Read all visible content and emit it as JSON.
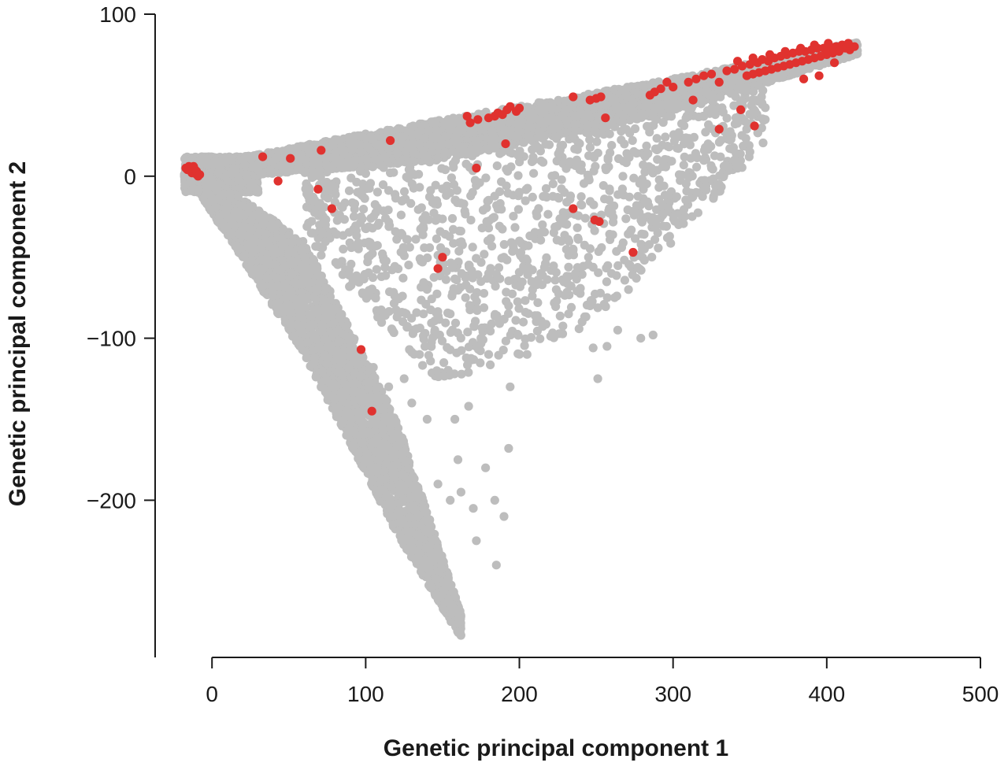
{
  "chart_data": {
    "type": "scatter",
    "title": "",
    "xlabel": "Genetic principal component 1",
    "ylabel": "Genetic principal component 2",
    "xlim": [
      -37,
      500
    ],
    "ylim": [
      -297,
      100
    ],
    "xticks": [
      0,
      100,
      200,
      300,
      400,
      500
    ],
    "yticks": [
      100,
      0,
      -100,
      -200
    ],
    "xtick_labels": [
      "0",
      "100",
      "200",
      "300",
      "400",
      "500"
    ],
    "ytick_labels": [
      "100",
      "0",
      "−100",
      "−200"
    ],
    "grid": false,
    "legend": "none",
    "series": [
      {
        "color": "#bdbdbd",
        "bands": [
          {
            "x_min": -18,
            "x_max": 30,
            "y_low": -10,
            "y_high": 12,
            "count": 1100
          },
          {
            "x_min": -10,
            "x_max": 162,
            "y_low_curve": [
              [
                -10,
                -8
              ],
              [
                60,
                -110
              ],
              [
                120,
                -220
              ],
              [
                162,
                -285
              ]
            ],
            "y_high_curve": [
              [
                -10,
                5
              ],
              [
                60,
                -40
              ],
              [
                120,
                -150
              ],
              [
                162,
                -270
              ]
            ],
            "count": 3600
          },
          {
            "x_min": 20,
            "x_max": 420,
            "y_low_curve": [
              [
                20,
                0
              ],
              [
                150,
                10
              ],
              [
                300,
                40
              ],
              [
                420,
                75
              ]
            ],
            "y_high_curve": [
              [
                20,
                12
              ],
              [
                150,
                35
              ],
              [
                300,
                60
              ],
              [
                420,
                83
              ]
            ],
            "count": 3400
          },
          {
            "x_min": 60,
            "x_max": 360,
            "y_low_curve": [
              [
                60,
                -40
              ],
              [
                150,
                -130
              ],
              [
                250,
                -90
              ],
              [
                360,
                20
              ]
            ],
            "y_high_curve": [
              [
                60,
                10
              ],
              [
                150,
                30
              ],
              [
                250,
                45
              ],
              [
                360,
                65
              ]
            ],
            "count": 1300
          }
        ],
        "points": [
          [
            147,
            -190
          ],
          [
            162,
            -195
          ],
          [
            172,
            -225
          ],
          [
            185,
            -240
          ],
          [
            193,
            -168
          ],
          [
            184,
            -200
          ],
          [
            194,
            -130
          ],
          [
            180,
            -110
          ],
          [
            175,
            -100
          ],
          [
            205,
            -110
          ],
          [
            248,
            -106
          ],
          [
            251,
            -125
          ],
          [
            257,
            -105
          ],
          [
            264,
            -95
          ],
          [
            271,
            -70
          ],
          [
            279,
            -100
          ],
          [
            287,
            -98
          ],
          [
            246,
            -80
          ],
          [
            262,
            -75
          ],
          [
            232,
            -85
          ],
          [
            214,
            -60
          ],
          [
            193,
            -80
          ],
          [
            180,
            -60
          ],
          [
            160,
            -175
          ],
          [
            155,
            -200
          ],
          [
            170,
            -205
          ],
          [
            190,
            -210
          ],
          [
            178,
            -180
          ],
          [
            167,
            -142
          ],
          [
            158,
            -150
          ],
          [
            140,
            -150
          ],
          [
            130,
            -140
          ],
          [
            224,
            -70
          ],
          [
            208,
            -65
          ],
          [
            297,
            -20
          ],
          [
            303,
            -23
          ],
          [
            340,
            10
          ],
          [
            350,
            15
          ],
          [
            360,
            35
          ],
          [
            330,
            -5
          ],
          [
            325,
            5
          ],
          [
            315,
            -10
          ],
          [
            290,
            -35
          ],
          [
            280,
            -45
          ],
          [
            272,
            -55
          ],
          [
            260,
            -60
          ],
          [
            245,
            -50
          ],
          [
            235,
            -45
          ],
          [
            215,
            -30
          ],
          [
            200,
            -40
          ],
          [
            190,
            -50
          ],
          [
            175,
            -65
          ],
          [
            165,
            -75
          ],
          [
            155,
            -85
          ],
          [
            145,
            -95
          ],
          [
            135,
            -110
          ],
          [
            125,
            -125
          ],
          [
            115,
            -130
          ],
          [
            105,
            -118
          ]
        ]
      },
      {
        "color": "#e0322f",
        "points": [
          [
            -17,
            5
          ],
          [
            -14,
            5
          ],
          [
            -12,
            3
          ],
          [
            -10,
            1
          ],
          [
            -9,
            0
          ],
          [
            -13,
            2
          ],
          [
            -11,
            4
          ],
          [
            -16,
            4
          ],
          [
            -15,
            6
          ],
          [
            -12,
            6
          ],
          [
            -10,
            3
          ],
          [
            -8,
            1
          ],
          [
            33,
            12
          ],
          [
            51,
            11
          ],
          [
            71,
            16
          ],
          [
            69,
            -8
          ],
          [
            43,
            -3
          ],
          [
            78,
            -20
          ],
          [
            116,
            22
          ],
          [
            172,
            5
          ],
          [
            150,
            -50
          ],
          [
            147,
            -57
          ],
          [
            97,
            -107
          ],
          [
            104,
            -145
          ],
          [
            166,
            37
          ],
          [
            168,
            33
          ],
          [
            173,
            35
          ],
          [
            180,
            36
          ],
          [
            184,
            37
          ],
          [
            186,
            39
          ],
          [
            189,
            38
          ],
          [
            192,
            41
          ],
          [
            194,
            43
          ],
          [
            198,
            40
          ],
          [
            200,
            42
          ],
          [
            191,
            20
          ],
          [
            235,
            49
          ],
          [
            246,
            47
          ],
          [
            250,
            48
          ],
          [
            253,
            49
          ],
          [
            256,
            36
          ],
          [
            235,
            -20
          ],
          [
            249,
            -27
          ],
          [
            252,
            -28
          ],
          [
            274,
            -47
          ],
          [
            300,
            55
          ],
          [
            296,
            58
          ],
          [
            292,
            54
          ],
          [
            288,
            52
          ],
          [
            285,
            50
          ],
          [
            310,
            58
          ],
          [
            315,
            60
          ],
          [
            313,
            47
          ],
          [
            320,
            62
          ],
          [
            325,
            63
          ],
          [
            330,
            58
          ],
          [
            335,
            65
          ],
          [
            340,
            66
          ],
          [
            345,
            68
          ],
          [
            350,
            69
          ],
          [
            355,
            70
          ],
          [
            358,
            72
          ],
          [
            362,
            71
          ],
          [
            366,
            73
          ],
          [
            370,
            74
          ],
          [
            374,
            75
          ],
          [
            378,
            76
          ],
          [
            382,
            77
          ],
          [
            386,
            77
          ],
          [
            390,
            78
          ],
          [
            394,
            79
          ],
          [
            398,
            79
          ],
          [
            402,
            80
          ],
          [
            406,
            80
          ],
          [
            410,
            81
          ],
          [
            412,
            79
          ],
          [
            408,
            77
          ],
          [
            404,
            76
          ],
          [
            400,
            75
          ],
          [
            396,
            74
          ],
          [
            392,
            73
          ],
          [
            388,
            72
          ],
          [
            384,
            71
          ],
          [
            380,
            70
          ],
          [
            376,
            69
          ],
          [
            372,
            68
          ],
          [
            368,
            67
          ],
          [
            364,
            66
          ],
          [
            360,
            65
          ],
          [
            356,
            64
          ],
          [
            352,
            63
          ],
          [
            348,
            62
          ],
          [
            344,
            41
          ],
          [
            353,
            31
          ],
          [
            330,
            29
          ],
          [
            385,
            60
          ],
          [
            395,
            62
          ],
          [
            405,
            70
          ],
          [
            415,
            78
          ],
          [
            418,
            80
          ],
          [
            414,
            82
          ],
          [
            401,
            82
          ],
          [
            392,
            81
          ],
          [
            383,
            79
          ],
          [
            373,
            77
          ],
          [
            363,
            75
          ],
          [
            352,
            73
          ],
          [
            342,
            71
          ]
        ]
      }
    ]
  }
}
